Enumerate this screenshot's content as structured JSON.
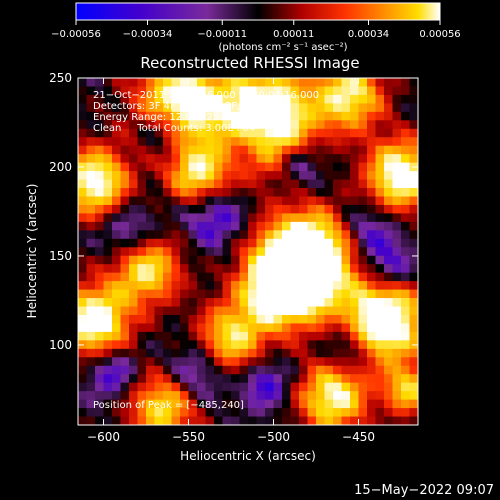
{
  "chart_data": {
    "type": "heatmap",
    "title": "Reconstructed RHESSI Image",
    "xlabel": "Heliocentric X (arcsec)",
    "ylabel": "Heliocentric Y (arcsec)",
    "xlim": [
      -615,
      -415
    ],
    "ylim": [
      55,
      250
    ],
    "x_ticks": [
      -600,
      -550,
      -500,
      -450
    ],
    "x_tick_labels": [
      "−600",
      "−550",
      "−500",
      "−450"
    ],
    "y_ticks": [
      100,
      150,
      200,
      250
    ],
    "y_tick_labels": [
      "100",
      "150",
      "200",
      "250"
    ],
    "colorbar": {
      "range": [
        -0.00056,
        0.00056
      ],
      "ticks": [
        -0.00056,
        -0.00034,
        -0.00011,
        0.00011,
        0.00034,
        0.00056
      ],
      "tick_labels": [
        "−0.00056",
        "−0.00034",
        "−0.00011",
        "0.00011",
        "0.00034",
        "0.00056"
      ],
      "label": "(photons cm⁻² s⁻¹ asec⁻²)",
      "colormap": [
        "#0000ff",
        "#4400cc",
        "#7a2a9a",
        "#000000",
        "#b00000",
        "#ff3300",
        "#ff9900",
        "#ffdd00",
        "#ffffff"
      ]
    },
    "annotations": [
      "21−Oct−2011 20:02:16.000 to 20:04:16.000",
      "Detectors: 3F 4F 5F 6F 7F 8F, Att 0",
      "Energy Range: 12.0 − 25.0 keV",
      "Clean     Total Counts: 3.00E+04"
    ],
    "peak_label": "Position of Peak = [−485,240]",
    "peak_position": [
      -485,
      240
    ],
    "grid": false
  },
  "footer": {
    "timestamp": "15−May−2022 09:07"
  }
}
